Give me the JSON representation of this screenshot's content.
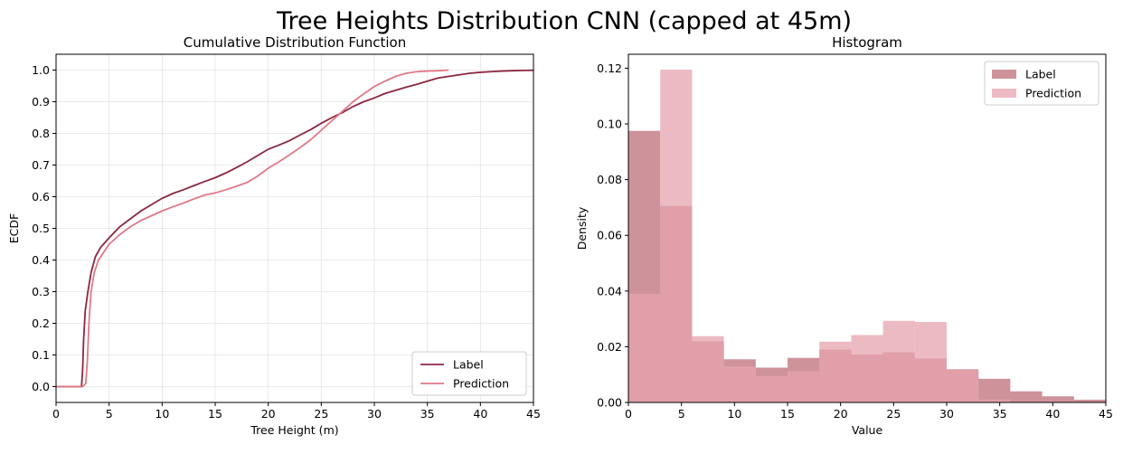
{
  "suptitle": "Tree Heights Distribution CNN (capped at 45m)",
  "chart_data": [
    {
      "type": "line",
      "title": "Cumulative Distribution Function",
      "xlabel": "Tree Height (m)",
      "ylabel": "ECDF",
      "xlim": [
        0,
        45
      ],
      "ylim": [
        -0.05,
        1.05
      ],
      "xticks": [
        0,
        5,
        10,
        15,
        20,
        25,
        30,
        35,
        40,
        45
      ],
      "yticks": [
        0.0,
        0.1,
        0.2,
        0.3,
        0.4,
        0.5,
        0.6,
        0.7,
        0.8,
        0.9,
        1.0
      ],
      "grid": true,
      "legend": "lower right",
      "series": [
        {
          "name": "Label",
          "color": "#8b2740",
          "points": [
            [
              0,
              0
            ],
            [
              2.4,
              0
            ],
            [
              2.5,
              0.05
            ],
            [
              2.6,
              0.15
            ],
            [
              2.75,
              0.24
            ],
            [
              3.0,
              0.3
            ],
            [
              3.3,
              0.36
            ],
            [
              3.7,
              0.41
            ],
            [
              4.2,
              0.44
            ],
            [
              5,
              0.47
            ],
            [
              6,
              0.505
            ],
            [
              7,
              0.53
            ],
            [
              8,
              0.555
            ],
            [
              9,
              0.575
            ],
            [
              10,
              0.595
            ],
            [
              11,
              0.61
            ],
            [
              12,
              0.622
            ],
            [
              13,
              0.635
            ],
            [
              14,
              0.648
            ],
            [
              15,
              0.66
            ],
            [
              16,
              0.675
            ],
            [
              17,
              0.692
            ],
            [
              18,
              0.71
            ],
            [
              19,
              0.73
            ],
            [
              20,
              0.75
            ],
            [
              21,
              0.763
            ],
            [
              22,
              0.777
            ],
            [
              23,
              0.795
            ],
            [
              24,
              0.812
            ],
            [
              25,
              0.832
            ],
            [
              26,
              0.85
            ],
            [
              27,
              0.866
            ],
            [
              28,
              0.885
            ],
            [
              29,
              0.9
            ],
            [
              30,
              0.912
            ],
            [
              31,
              0.926
            ],
            [
              32,
              0.936
            ],
            [
              33,
              0.946
            ],
            [
              34,
              0.955
            ],
            [
              35,
              0.965
            ],
            [
              36,
              0.975
            ],
            [
              37,
              0.98
            ],
            [
              38,
              0.985
            ],
            [
              39,
              0.99
            ],
            [
              40,
              0.993
            ],
            [
              41,
              0.995
            ],
            [
              42,
              0.997
            ],
            [
              43,
              0.998
            ],
            [
              44,
              0.999
            ],
            [
              45,
              0.9995
            ]
          ]
        },
        {
          "name": "Prediction",
          "color": "#e07888",
          "points": [
            [
              0,
              0
            ],
            [
              2.5,
              0
            ],
            [
              2.8,
              0.01
            ],
            [
              2.95,
              0.08
            ],
            [
              3.1,
              0.2
            ],
            [
              3.3,
              0.3
            ],
            [
              3.6,
              0.36
            ],
            [
              4.0,
              0.4
            ],
            [
              4.5,
              0.425
            ],
            [
              5,
              0.45
            ],
            [
              6,
              0.48
            ],
            [
              7,
              0.505
            ],
            [
              8,
              0.525
            ],
            [
              9,
              0.54
            ],
            [
              10,
              0.555
            ],
            [
              11,
              0.568
            ],
            [
              12,
              0.58
            ],
            [
              13,
              0.593
            ],
            [
              14,
              0.605
            ],
            [
              15,
              0.612
            ],
            [
              16,
              0.622
            ],
            [
              17,
              0.633
            ],
            [
              18,
              0.645
            ],
            [
              19,
              0.665
            ],
            [
              20,
              0.69
            ],
            [
              21,
              0.71
            ],
            [
              22,
              0.732
            ],
            [
              23,
              0.755
            ],
            [
              24,
              0.78
            ],
            [
              25,
              0.81
            ],
            [
              26,
              0.84
            ],
            [
              27,
              0.87
            ],
            [
              28,
              0.9
            ],
            [
              29,
              0.925
            ],
            [
              30,
              0.948
            ],
            [
              31,
              0.965
            ],
            [
              32,
              0.98
            ],
            [
              33,
              0.99
            ],
            [
              34,
              0.995
            ],
            [
              35,
              0.997
            ],
            [
              36,
              0.998
            ],
            [
              37,
              1.0
            ]
          ]
        }
      ]
    },
    {
      "type": "bar",
      "title": "Histogram",
      "xlabel": "Value",
      "ylabel": "Density",
      "xlim": [
        0,
        45
      ],
      "ylim": [
        0,
        0.125
      ],
      "xticks": [
        0,
        5,
        10,
        15,
        20,
        25,
        30,
        35,
        40,
        45
      ],
      "yticks": [
        0.0,
        0.02,
        0.04,
        0.06,
        0.08,
        0.1,
        0.12
      ],
      "ytick_labels": [
        "0.00",
        "0.02",
        "0.04",
        "0.06",
        "0.08",
        "0.10",
        "0.12"
      ],
      "grid": false,
      "legend": "upper right",
      "series": [
        {
          "name": "Label",
          "color": "#b45766",
          "opacity": 0.65,
          "bins": [
            [
              0,
              3,
              0.0975
            ],
            [
              3,
              6,
              0.0705
            ],
            [
              6,
              9,
              0.022
            ],
            [
              9,
              12,
              0.0155
            ],
            [
              12,
              15,
              0.0125
            ],
            [
              15,
              18,
              0.016
            ],
            [
              18,
              21,
              0.019
            ],
            [
              21,
              24,
              0.0172
            ],
            [
              24,
              27,
              0.018
            ],
            [
              27,
              30,
              0.0158
            ],
            [
              30,
              33,
              0.0118
            ],
            [
              33,
              36,
              0.0085
            ],
            [
              36,
              39,
              0.004
            ],
            [
              39,
              42,
              0.0022
            ],
            [
              42,
              45,
              0.001
            ]
          ]
        },
        {
          "name": "Prediction",
          "color": "#e6a3ae",
          "opacity": 0.75,
          "bins": [
            [
              0,
              3,
              0.039
            ],
            [
              3,
              6,
              0.1195
            ],
            [
              6,
              9,
              0.0238
            ],
            [
              9,
              12,
              0.013
            ],
            [
              12,
              15,
              0.0095
            ],
            [
              15,
              18,
              0.0112
            ],
            [
              18,
              21,
              0.0218
            ],
            [
              21,
              24,
              0.0242
            ],
            [
              24,
              27,
              0.0293
            ],
            [
              27,
              30,
              0.0289
            ],
            [
              30,
              33,
              0.012
            ],
            [
              33,
              36,
              0.001
            ]
          ]
        }
      ]
    }
  ]
}
